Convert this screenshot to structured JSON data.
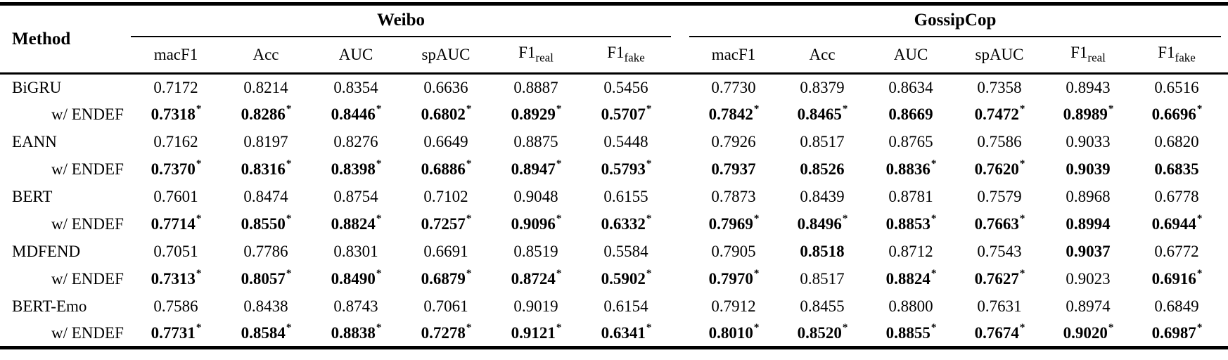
{
  "table": {
    "method_header": "Method",
    "group_headers": [
      "Weibo",
      "GossipCop"
    ],
    "metric_columns": [
      {
        "label": "macF1",
        "sub": ""
      },
      {
        "label": "Acc",
        "sub": ""
      },
      {
        "label": "AUC",
        "sub": ""
      },
      {
        "label": "spAUC",
        "sub": ""
      },
      {
        "label": "F1",
        "sub": "real"
      },
      {
        "label": "F1",
        "sub": "fake"
      }
    ],
    "rows": [
      {
        "method": "BiGRU",
        "indent": false,
        "weibo": [
          {
            "v": "0.7172",
            "bold": false,
            "star": false
          },
          {
            "v": "0.8214",
            "bold": false,
            "star": false
          },
          {
            "v": "0.8354",
            "bold": false,
            "star": false
          },
          {
            "v": "0.6636",
            "bold": false,
            "star": false
          },
          {
            "v": "0.8887",
            "bold": false,
            "star": false
          },
          {
            "v": "0.5456",
            "bold": false,
            "star": false
          }
        ],
        "gossipcop": [
          {
            "v": "0.7730",
            "bold": false,
            "star": false
          },
          {
            "v": "0.8379",
            "bold": false,
            "star": false
          },
          {
            "v": "0.8634",
            "bold": false,
            "star": false
          },
          {
            "v": "0.7358",
            "bold": false,
            "star": false
          },
          {
            "v": "0.8943",
            "bold": false,
            "star": false
          },
          {
            "v": "0.6516",
            "bold": false,
            "star": false
          }
        ]
      },
      {
        "method": "w/ ENDEF",
        "indent": true,
        "weibo": [
          {
            "v": "0.7318",
            "bold": true,
            "star": true
          },
          {
            "v": "0.8286",
            "bold": true,
            "star": true
          },
          {
            "v": "0.8446",
            "bold": true,
            "star": true
          },
          {
            "v": "0.6802",
            "bold": true,
            "star": true
          },
          {
            "v": "0.8929",
            "bold": true,
            "star": true
          },
          {
            "v": "0.5707",
            "bold": true,
            "star": true
          }
        ],
        "gossipcop": [
          {
            "v": "0.7842",
            "bold": true,
            "star": true
          },
          {
            "v": "0.8465",
            "bold": true,
            "star": true
          },
          {
            "v": "0.8669",
            "bold": true,
            "star": false
          },
          {
            "v": "0.7472",
            "bold": true,
            "star": true
          },
          {
            "v": "0.8989",
            "bold": true,
            "star": true
          },
          {
            "v": "0.6696",
            "bold": true,
            "star": true
          }
        ]
      },
      {
        "method": "EANN",
        "indent": false,
        "weibo": [
          {
            "v": "0.7162",
            "bold": false,
            "star": false
          },
          {
            "v": "0.8197",
            "bold": false,
            "star": false
          },
          {
            "v": "0.8276",
            "bold": false,
            "star": false
          },
          {
            "v": "0.6649",
            "bold": false,
            "star": false
          },
          {
            "v": "0.8875",
            "bold": false,
            "star": false
          },
          {
            "v": "0.5448",
            "bold": false,
            "star": false
          }
        ],
        "gossipcop": [
          {
            "v": "0.7926",
            "bold": false,
            "star": false
          },
          {
            "v": "0.8517",
            "bold": false,
            "star": false
          },
          {
            "v": "0.8765",
            "bold": false,
            "star": false
          },
          {
            "v": "0.7586",
            "bold": false,
            "star": false
          },
          {
            "v": "0.9033",
            "bold": false,
            "star": false
          },
          {
            "v": "0.6820",
            "bold": false,
            "star": false
          }
        ]
      },
      {
        "method": "w/ ENDEF",
        "indent": true,
        "weibo": [
          {
            "v": "0.7370",
            "bold": true,
            "star": true
          },
          {
            "v": "0.8316",
            "bold": true,
            "star": true
          },
          {
            "v": "0.8398",
            "bold": true,
            "star": true
          },
          {
            "v": "0.6886",
            "bold": true,
            "star": true
          },
          {
            "v": "0.8947",
            "bold": true,
            "star": true
          },
          {
            "v": "0.5793",
            "bold": true,
            "star": true
          }
        ],
        "gossipcop": [
          {
            "v": "0.7937",
            "bold": true,
            "star": false
          },
          {
            "v": "0.8526",
            "bold": true,
            "star": false
          },
          {
            "v": "0.8836",
            "bold": true,
            "star": true
          },
          {
            "v": "0.7620",
            "bold": true,
            "star": true
          },
          {
            "v": "0.9039",
            "bold": true,
            "star": false
          },
          {
            "v": "0.6835",
            "bold": true,
            "star": false
          }
        ]
      },
      {
        "method": "BERT",
        "indent": false,
        "weibo": [
          {
            "v": "0.7601",
            "bold": false,
            "star": false
          },
          {
            "v": "0.8474",
            "bold": false,
            "star": false
          },
          {
            "v": "0.8754",
            "bold": false,
            "star": false
          },
          {
            "v": "0.7102",
            "bold": false,
            "star": false
          },
          {
            "v": "0.9048",
            "bold": false,
            "star": false
          },
          {
            "v": "0.6155",
            "bold": false,
            "star": false
          }
        ],
        "gossipcop": [
          {
            "v": "0.7873",
            "bold": false,
            "star": false
          },
          {
            "v": "0.8439",
            "bold": false,
            "star": false
          },
          {
            "v": "0.8781",
            "bold": false,
            "star": false
          },
          {
            "v": "0.7579",
            "bold": false,
            "star": false
          },
          {
            "v": "0.8968",
            "bold": false,
            "star": false
          },
          {
            "v": "0.6778",
            "bold": false,
            "star": false
          }
        ]
      },
      {
        "method": "w/ ENDEF",
        "indent": true,
        "weibo": [
          {
            "v": "0.7714",
            "bold": true,
            "star": true
          },
          {
            "v": "0.8550",
            "bold": true,
            "star": true
          },
          {
            "v": "0.8824",
            "bold": true,
            "star": true
          },
          {
            "v": "0.7257",
            "bold": true,
            "star": true
          },
          {
            "v": "0.9096",
            "bold": true,
            "star": true
          },
          {
            "v": "0.6332",
            "bold": true,
            "star": true
          }
        ],
        "gossipcop": [
          {
            "v": "0.7969",
            "bold": true,
            "star": true
          },
          {
            "v": "0.8496",
            "bold": true,
            "star": true
          },
          {
            "v": "0.8853",
            "bold": true,
            "star": true
          },
          {
            "v": "0.7663",
            "bold": true,
            "star": true
          },
          {
            "v": "0.8994",
            "bold": true,
            "star": false
          },
          {
            "v": "0.6944",
            "bold": true,
            "star": true
          }
        ]
      },
      {
        "method": "MDFEND",
        "indent": false,
        "weibo": [
          {
            "v": "0.7051",
            "bold": false,
            "star": false
          },
          {
            "v": "0.7786",
            "bold": false,
            "star": false
          },
          {
            "v": "0.8301",
            "bold": false,
            "star": false
          },
          {
            "v": "0.6691",
            "bold": false,
            "star": false
          },
          {
            "v": "0.8519",
            "bold": false,
            "star": false
          },
          {
            "v": "0.5584",
            "bold": false,
            "star": false
          }
        ],
        "gossipcop": [
          {
            "v": "0.7905",
            "bold": false,
            "star": false
          },
          {
            "v": "0.8518",
            "bold": true,
            "star": false
          },
          {
            "v": "0.8712",
            "bold": false,
            "star": false
          },
          {
            "v": "0.7543",
            "bold": false,
            "star": false
          },
          {
            "v": "0.9037",
            "bold": true,
            "star": false
          },
          {
            "v": "0.6772",
            "bold": false,
            "star": false
          }
        ]
      },
      {
        "method": "w/ ENDEF",
        "indent": true,
        "weibo": [
          {
            "v": "0.7313",
            "bold": true,
            "star": true
          },
          {
            "v": "0.8057",
            "bold": true,
            "star": true
          },
          {
            "v": "0.8490",
            "bold": true,
            "star": true
          },
          {
            "v": "0.6879",
            "bold": true,
            "star": true
          },
          {
            "v": "0.8724",
            "bold": true,
            "star": true
          },
          {
            "v": "0.5902",
            "bold": true,
            "star": true
          }
        ],
        "gossipcop": [
          {
            "v": "0.7970",
            "bold": true,
            "star": true
          },
          {
            "v": "0.8517",
            "bold": false,
            "star": false
          },
          {
            "v": "0.8824",
            "bold": true,
            "star": true
          },
          {
            "v": "0.7627",
            "bold": true,
            "star": true
          },
          {
            "v": "0.9023",
            "bold": false,
            "star": false
          },
          {
            "v": "0.6916",
            "bold": true,
            "star": true
          }
        ]
      },
      {
        "method": "BERT-Emo",
        "indent": false,
        "weibo": [
          {
            "v": "0.7586",
            "bold": false,
            "star": false
          },
          {
            "v": "0.8438",
            "bold": false,
            "star": false
          },
          {
            "v": "0.8743",
            "bold": false,
            "star": false
          },
          {
            "v": "0.7061",
            "bold": false,
            "star": false
          },
          {
            "v": "0.9019",
            "bold": false,
            "star": false
          },
          {
            "v": "0.6154",
            "bold": false,
            "star": false
          }
        ],
        "gossipcop": [
          {
            "v": "0.7912",
            "bold": false,
            "star": false
          },
          {
            "v": "0.8455",
            "bold": false,
            "star": false
          },
          {
            "v": "0.8800",
            "bold": false,
            "star": false
          },
          {
            "v": "0.7631",
            "bold": false,
            "star": false
          },
          {
            "v": "0.8974",
            "bold": false,
            "star": false
          },
          {
            "v": "0.6849",
            "bold": false,
            "star": false
          }
        ]
      },
      {
        "method": "w/ ENDEF",
        "indent": true,
        "weibo": [
          {
            "v": "0.7731",
            "bold": true,
            "star": true
          },
          {
            "v": "0.8584",
            "bold": true,
            "star": true
          },
          {
            "v": "0.8838",
            "bold": true,
            "star": true
          },
          {
            "v": "0.7278",
            "bold": true,
            "star": true
          },
          {
            "v": "0.9121",
            "bold": true,
            "star": true
          },
          {
            "v": "0.6341",
            "bold": true,
            "star": true
          }
        ],
        "gossipcop": [
          {
            "v": "0.8010",
            "bold": true,
            "star": true
          },
          {
            "v": "0.8520",
            "bold": true,
            "star": true
          },
          {
            "v": "0.8855",
            "bold": true,
            "star": true
          },
          {
            "v": "0.7674",
            "bold": true,
            "star": true
          },
          {
            "v": "0.9020",
            "bold": true,
            "star": true
          },
          {
            "v": "0.6987",
            "bold": true,
            "star": true
          }
        ]
      }
    ]
  }
}
